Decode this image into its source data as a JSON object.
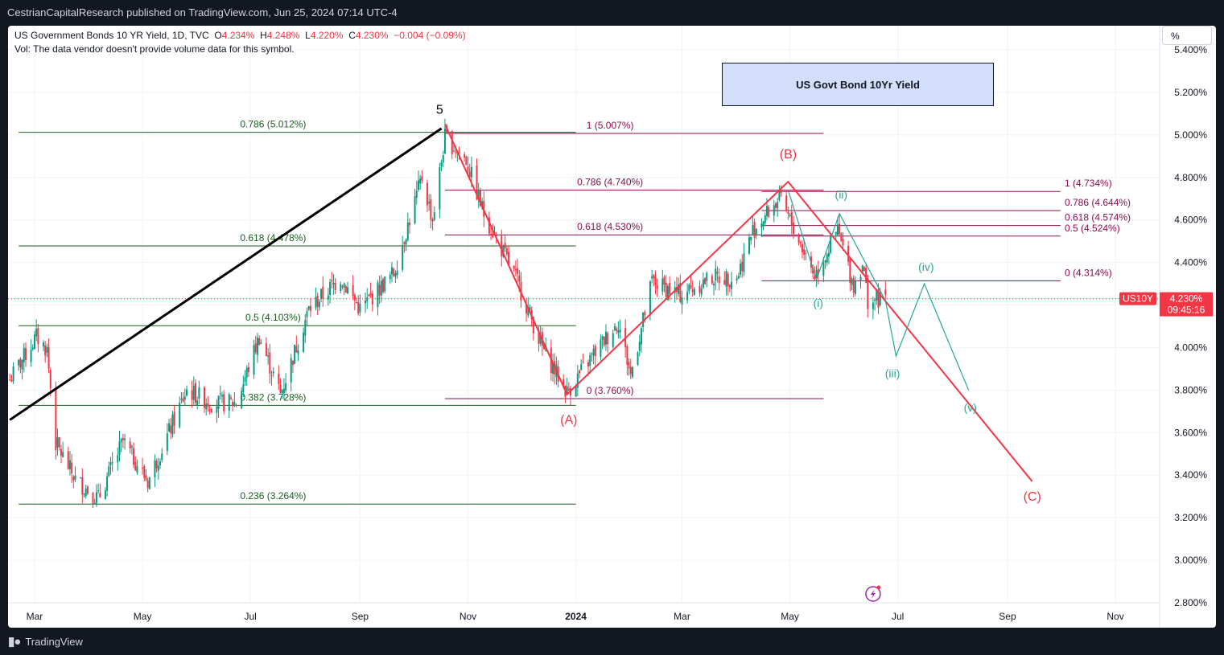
{
  "header": {
    "publisher_line": "CestrianCapitalResearch published on TradingView.com, Jun 25, 2024 07:14 UTC-4"
  },
  "legend": {
    "symbol": "US Government Bonds 10 YR Yield, 1D, TVC",
    "open_label": "O",
    "open": "4.234%",
    "high_label": "H",
    "high": "4.248%",
    "low_label": "L",
    "low": "4.220%",
    "close_label": "C",
    "close": "4.230%",
    "change": "−0.004 (−0.09%)",
    "volume_note": "Vol: The data vendor doesn't provide volume data for this symbol."
  },
  "scale_button": "%",
  "title_box": "US Govt Bond 10Yr Yield",
  "footer": {
    "brand": "TradingView"
  },
  "price_tag": {
    "symbol": "US10Y",
    "value": "4.230%",
    "countdown": "09:45:16"
  },
  "colors": {
    "up": "#089981",
    "down": "#f23645",
    "fib_green": "#1b5e20",
    "fib_purple": "#880e4f",
    "wave_red": "#f23645",
    "wave_teal": "#26a69a",
    "trend_black": "#000000"
  },
  "chart_data": {
    "type": "candlestick",
    "y_axis": {
      "min": 2.8,
      "max": 5.4,
      "unit": "%",
      "ticks": [
        "5.400%",
        "5.200%",
        "5.000%",
        "4.800%",
        "4.600%",
        "4.400%",
        "4.200%",
        "4.000%",
        "3.800%",
        "3.600%",
        "3.400%",
        "3.200%",
        "3.000%",
        "2.800%"
      ]
    },
    "x_axis": {
      "ticks": [
        {
          "label": "Mar",
          "date": "2023-03-01",
          "bold": false
        },
        {
          "label": "May",
          "date": "2023-05-01",
          "bold": false
        },
        {
          "label": "Jul",
          "date": "2023-07-01",
          "bold": false
        },
        {
          "label": "Sep",
          "date": "2023-09-01",
          "bold": false
        },
        {
          "label": "Nov",
          "date": "2023-11-01",
          "bold": false
        },
        {
          "label": "2024",
          "date": "2024-01-01",
          "bold": true
        },
        {
          "label": "Mar",
          "date": "2024-03-01",
          "bold": false
        },
        {
          "label": "May",
          "date": "2024-05-01",
          "bold": false
        },
        {
          "label": "Jul",
          "date": "2024-07-01",
          "bold": false
        },
        {
          "label": "Sep",
          "date": "2024-09-01",
          "bold": false
        },
        {
          "label": "Nov",
          "date": "2024-11-01",
          "bold": false
        }
      ]
    },
    "price_path": [
      [
        "2023-02-15",
        3.85
      ],
      [
        "2023-03-02",
        4.05
      ],
      [
        "2023-03-08",
        3.99
      ],
      [
        "2023-03-13",
        3.55
      ],
      [
        "2023-03-24",
        3.38
      ],
      [
        "2023-04-06",
        3.29
      ],
      [
        "2023-04-20",
        3.56
      ],
      [
        "2023-05-04",
        3.37
      ],
      [
        "2023-05-26",
        3.8
      ],
      [
        "2023-06-09",
        3.74
      ],
      [
        "2023-06-23",
        3.74
      ],
      [
        "2023-07-06",
        4.05
      ],
      [
        "2023-07-18",
        3.78
      ],
      [
        "2023-08-03",
        4.18
      ],
      [
        "2023-08-21",
        4.33
      ],
      [
        "2023-09-01",
        4.18
      ],
      [
        "2023-09-20",
        4.35
      ],
      [
        "2023-10-06",
        4.8
      ],
      [
        "2023-10-12",
        4.6
      ],
      [
        "2023-10-19",
        4.99
      ],
      [
        "2023-10-31",
        4.88
      ],
      [
        "2023-11-10",
        4.63
      ],
      [
        "2023-11-28",
        4.33
      ],
      [
        "2023-12-13",
        4.0
      ],
      [
        "2023-12-27",
        3.79
      ],
      [
        "2024-01-11",
        3.97
      ],
      [
        "2024-01-25",
        4.12
      ],
      [
        "2024-02-01",
        3.87
      ],
      [
        "2024-02-13",
        4.31
      ],
      [
        "2024-02-29",
        4.25
      ],
      [
        "2024-03-18",
        4.33
      ],
      [
        "2024-04-01",
        4.33
      ],
      [
        "2024-04-10",
        4.55
      ],
      [
        "2024-04-25",
        4.7
      ],
      [
        "2024-05-02",
        4.58
      ],
      [
        "2024-05-15",
        4.34
      ],
      [
        "2024-05-28",
        4.55
      ],
      [
        "2024-06-06",
        4.29
      ],
      [
        "2024-06-11",
        4.4
      ],
      [
        "2024-06-14",
        4.22
      ],
      [
        "2024-06-24",
        4.23
      ]
    ],
    "fib_left": {
      "color": "green",
      "from": "2023-02-20",
      "to": "2024-01-01",
      "levels": [
        {
          "label": "0.786 (5.012%)",
          "value": 5.012
        },
        {
          "label": "0.618 (4.478%)",
          "value": 4.478
        },
        {
          "label": "0.5 (4.103%)",
          "value": 4.103
        },
        {
          "label": "0.382 (3.728%)",
          "value": 3.728
        },
        {
          "label": "0.236 (3.264%)",
          "value": 3.264
        }
      ]
    },
    "fib_mid": {
      "color": "purple",
      "from": "2023-10-19",
      "to": "2024-05-20",
      "levels": [
        {
          "label": "1 (5.007%)",
          "value": 5.007
        },
        {
          "label": "0.786 (4.740%)",
          "value": 4.74
        },
        {
          "label": "0.618 (4.530%)",
          "value": 4.53
        },
        {
          "label": "0 (3.760%)",
          "value": 3.76
        }
      ]
    },
    "fib_right": {
      "color": "purple",
      "from": "2024-04-15",
      "to": "2024-10-01",
      "levels": [
        {
          "label": "1 (4.734%)",
          "value": 4.734
        },
        {
          "label": "0.786 (4.644%)",
          "value": 4.644
        },
        {
          "label": "0.618 (4.574%)",
          "value": 4.574
        },
        {
          "label": "0.5 (4.524%)",
          "value": 4.524
        },
        {
          "label": "0 (4.314%)",
          "value": 4.314
        }
      ]
    },
    "trendline": {
      "from": [
        "2023-02-15",
        3.66
      ],
      "to": [
        "2023-10-17",
        5.03
      ]
    },
    "wave_labels": [
      {
        "label": "5",
        "date": "2023-10-16",
        "value": 5.1,
        "color": "black"
      },
      {
        "label": "(A)",
        "date": "2023-12-28",
        "value": 3.64,
        "color": "red"
      },
      {
        "label": "(B)",
        "date": "2024-04-30",
        "value": 4.89,
        "color": "red"
      },
      {
        "label": "(C)",
        "date": "2024-09-15",
        "value": 3.28,
        "color": "red"
      },
      {
        "label": "(i)",
        "date": "2024-05-17",
        "value": 4.19,
        "color": "teal"
      },
      {
        "label": "(ii)",
        "date": "2024-05-30",
        "value": 4.7,
        "color": "teal"
      },
      {
        "label": "(iii)",
        "date": "2024-06-28",
        "value": 3.86,
        "color": "teal"
      },
      {
        "label": "(iv)",
        "date": "2024-07-17",
        "value": 4.36,
        "color": "teal"
      },
      {
        "label": "(v)",
        "date": "2024-08-11",
        "value": 3.7,
        "color": "teal"
      }
    ],
    "wave_abc": [
      [
        "2023-10-19",
        5.05
      ],
      [
        "2023-12-27",
        3.78
      ],
      [
        "2024-04-30",
        4.78
      ],
      [
        "2024-09-15",
        3.37
      ]
    ],
    "wave_teal": [
      [
        "2024-04-30",
        4.74
      ],
      [
        "2024-05-16",
        4.32
      ],
      [
        "2024-05-29",
        4.63
      ],
      [
        "2024-06-24",
        4.22
      ],
      [
        "2024-06-30",
        3.96
      ],
      [
        "2024-07-16",
        4.3
      ],
      [
        "2024-08-10",
        3.8
      ]
    ]
  }
}
